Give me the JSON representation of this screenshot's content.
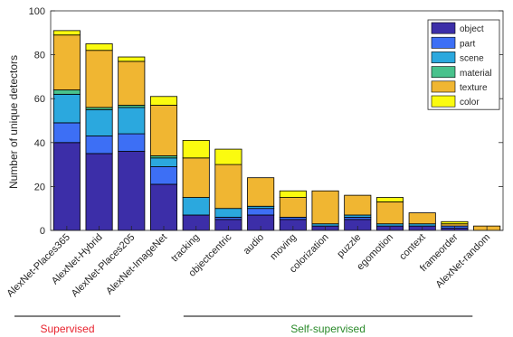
{
  "chart_data": {
    "type": "bar",
    "stacked": true,
    "title": "",
    "xlabel": "",
    "ylabel": "Number of unique detectors",
    "ylim": [
      0,
      100
    ],
    "yticks": [
      0,
      20,
      40,
      60,
      80,
      100
    ],
    "grid": false,
    "legend_position": "top-right",
    "categories": [
      "AlexNet-Places365",
      "AlexNet-Hybrid",
      "AlexNet-Places205",
      "AlexNet-ImageNet",
      "tracking",
      "objectcentric",
      "audio",
      "moving",
      "colorization",
      "puzzle",
      "egomotion",
      "context",
      "frameorder",
      "AlexNet-random"
    ],
    "series": [
      {
        "name": "object",
        "color": "#3c2ea8",
        "values": [
          40,
          35,
          36,
          21,
          7,
          5,
          7,
          5,
          2,
          5,
          2,
          2,
          1,
          0
        ]
      },
      {
        "name": "part",
        "color": "#3d6ff5",
        "values": [
          9,
          8,
          8,
          8,
          0,
          1,
          3,
          1,
          0,
          1,
          0,
          0,
          1,
          0
        ]
      },
      {
        "name": "scene",
        "color": "#2ba8de",
        "values": [
          13,
          12,
          12,
          4,
          8,
          4,
          1,
          0,
          1,
          1,
          1,
          1,
          0,
          0
        ]
      },
      {
        "name": "material",
        "color": "#49c28c",
        "values": [
          2,
          1,
          1,
          1,
          0,
          0,
          0,
          0,
          0,
          0,
          0,
          0,
          0,
          0
        ]
      },
      {
        "name": "texture",
        "color": "#f0b632",
        "values": [
          25,
          26,
          20,
          23,
          18,
          20,
          13,
          9,
          15,
          9,
          10,
          5,
          1,
          2
        ]
      },
      {
        "name": "color",
        "color": "#fbfb0f",
        "values": [
          2,
          3,
          2,
          4,
          8,
          7,
          0,
          3,
          0,
          0,
          2,
          0,
          1,
          0
        ]
      }
    ],
    "groups": [
      {
        "label": "Supervised",
        "color": "#e8232e",
        "first": 0,
        "last": 3
      },
      {
        "label": "Self-supervised",
        "color": "#2a8a2a",
        "first": 4,
        "last": 13
      }
    ]
  }
}
